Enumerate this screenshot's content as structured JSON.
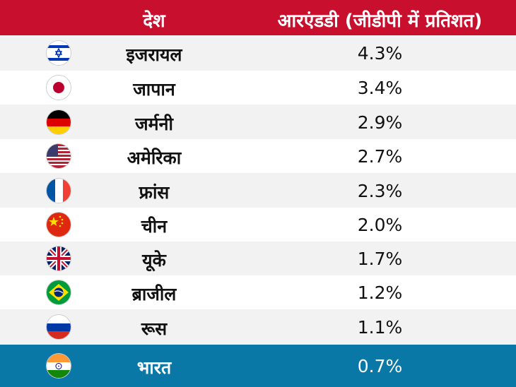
{
  "chart_data": {
    "type": "table",
    "columns": [
      "देश",
      "आरएंडडी (जीडीपी में प्रतिशत)"
    ],
    "rows": [
      {
        "country": "इजरायल",
        "value": "4.3%",
        "flag": "israel-flag-icon"
      },
      {
        "country": "जापान",
        "value": "3.4%",
        "flag": "japan-flag-icon"
      },
      {
        "country": "जर्मनी",
        "value": "2.9%",
        "flag": "germany-flag-icon"
      },
      {
        "country": "अमेरिका",
        "value": "2.7%",
        "flag": "usa-flag-icon"
      },
      {
        "country": "फ्रांस",
        "value": "2.3%",
        "flag": "france-flag-icon"
      },
      {
        "country": "चीन",
        "value": "2.0%",
        "flag": "china-flag-icon"
      },
      {
        "country": "यूके",
        "value": "1.7%",
        "flag": "uk-flag-icon"
      },
      {
        "country": "ब्राजील",
        "value": "1.2%",
        "flag": "brazil-flag-icon"
      },
      {
        "country": "रूस",
        "value": "1.1%",
        "flag": "russia-flag-icon"
      },
      {
        "country": "भारत",
        "value": "0.7%",
        "flag": "india-flag-icon",
        "highlight": true
      }
    ]
  },
  "colors": {
    "header": "#c8102e",
    "highlight": "#0a78a6",
    "zebra": "#f2f2f2"
  }
}
